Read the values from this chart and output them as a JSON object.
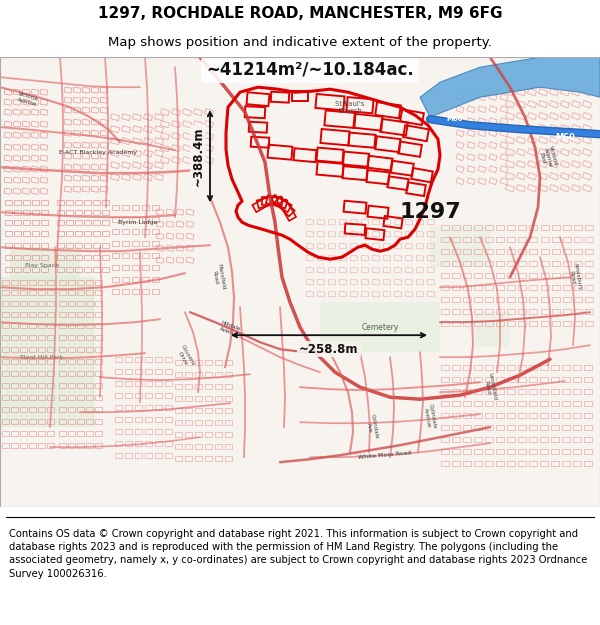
{
  "title_line1": "1297, ROCHDALE ROAD, MANCHESTER, M9 6FG",
  "title_line2": "Map shows position and indicative extent of the property.",
  "area_text": "~41214m²/~10.184ac.",
  "dim1_text": "~388.4m",
  "dim2_text": "~258.8m",
  "label_text": "1297",
  "footer_text": "Contains OS data © Crown copyright and database right 2021. This information is subject to Crown copyright and database rights 2023 and is reproduced with the permission of HM Land Registry. The polygons (including the associated geometry, namely x, y co-ordinates) are subject to Crown copyright and database rights 2023 Ordnance Survey 100026316.",
  "map_bg": "#f7f3ef",
  "highlight_fill": "none",
  "highlight_edge": "#dd0000",
  "road_color": "#e06060",
  "road_color2": "#cc4444",
  "bld_color": "#e07070",
  "title_fontsize": 11,
  "subtitle_fontsize": 9.5,
  "footer_fontsize": 7.2,
  "fig_width": 6.0,
  "fig_height": 6.25
}
